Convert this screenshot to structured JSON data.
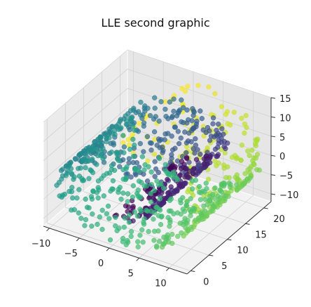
{
  "chart_data": {
    "type": "scatter",
    "projection": "3d",
    "title": "LLE second graphic",
    "xlabel": "",
    "ylabel": "",
    "zlabel": "",
    "x_ticks": [
      "−10",
      "−5",
      "0",
      "5",
      "10"
    ],
    "y_ticks": [
      "0",
      "5",
      "10",
      "15",
      "20"
    ],
    "z_ticks": [
      "−10",
      "−5",
      "0",
      "5",
      "10",
      "15"
    ],
    "xlim": [
      -11,
      13
    ],
    "ylim": [
      -1,
      22
    ],
    "zlim": [
      -12,
      15
    ],
    "grid": true,
    "colormap": "viridis",
    "pane_color": "#f2f2f2",
    "point_alpha": 0.7,
    "dataset": "swiss roll (approximate reconstruction)",
    "point_count": 1000
  }
}
